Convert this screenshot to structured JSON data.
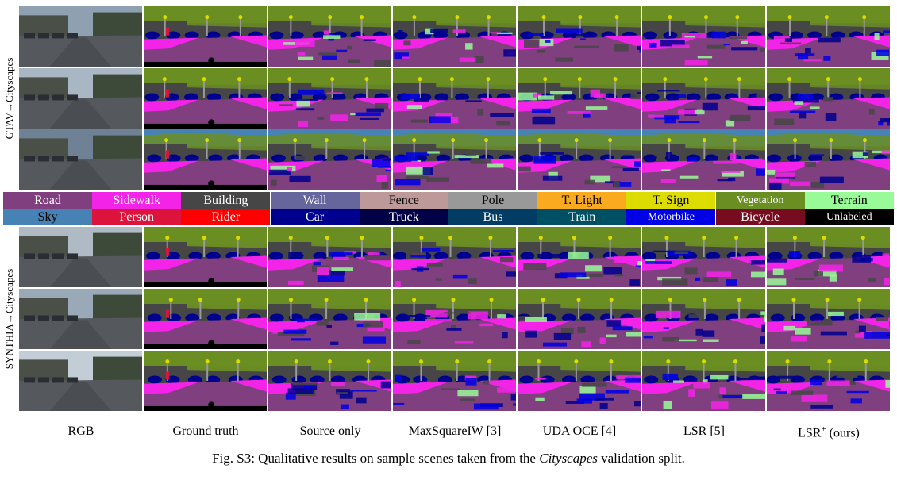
{
  "row_groups": [
    {
      "label": "GTAV→Cityscapes"
    },
    {
      "label": "SYNTHIA→Cityscapes"
    }
  ],
  "columns": [
    {
      "label": "RGB"
    },
    {
      "label": "Ground truth"
    },
    {
      "label": "Source only"
    },
    {
      "label": "MaxSquareIW [3]"
    },
    {
      "label": "UDA OCE [4]"
    },
    {
      "label": "LSR [5]"
    },
    {
      "label": "LSR+ (ours)"
    }
  ],
  "legend": [
    {
      "label": "Road",
      "color": "#80407f",
      "text_color": "#ffffff"
    },
    {
      "label": "Sidewalk",
      "color": "#f423e8",
      "text_color": "#ffffff"
    },
    {
      "label": "Building",
      "color": "#464646",
      "text_color": "#ffffff"
    },
    {
      "label": "Wall",
      "color": "#66669c",
      "text_color": "#ffffff"
    },
    {
      "label": "Fence",
      "color": "#be9999",
      "text_color": "#000000"
    },
    {
      "label": "Pole",
      "color": "#999999",
      "text_color": "#000000"
    },
    {
      "label": "T. Light",
      "color": "#faaa1e",
      "text_color": "#000000"
    },
    {
      "label": "T. Sign",
      "color": "#dcdc00",
      "text_color": "#000000"
    },
    {
      "label": "Vegetation",
      "color": "#6b8e23",
      "text_color": "#ffffff"
    },
    {
      "label": "Terrain",
      "color": "#98fb98",
      "text_color": "#000000"
    },
    {
      "label": "Sky",
      "color": "#4682b4",
      "text_color": "#000000"
    },
    {
      "label": "Person",
      "color": "#dc143c",
      "text_color": "#ffffff"
    },
    {
      "label": "Rider",
      "color": "#ff0000",
      "text_color": "#ffffff"
    },
    {
      "label": "Car",
      "color": "#00008e",
      "text_color": "#ffffff"
    },
    {
      "label": "Truck",
      "color": "#000046",
      "text_color": "#ffffff"
    },
    {
      "label": "Bus",
      "color": "#003c64",
      "text_color": "#ffffff"
    },
    {
      "label": "Train",
      "color": "#005064",
      "text_color": "#ffffff"
    },
    {
      "label": "Motorbike",
      "color": "#0000e6",
      "text_color": "#ffffff"
    },
    {
      "label": "Bicycle",
      "color": "#770b20",
      "text_color": "#ffffff"
    },
    {
      "label": "Unlabeled",
      "color": "#000000",
      "text_color": "#ffffff"
    }
  ],
  "caption": {
    "prefix": "Fig. S3: Qualitative results on sample scenes taken from the ",
    "emph": "Cityscapes",
    "suffix": " validation split."
  }
}
